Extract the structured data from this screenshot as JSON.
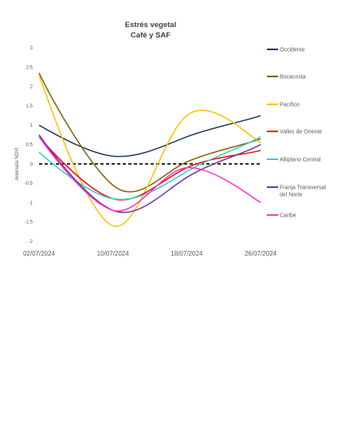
{
  "chart_data": {
    "type": "line",
    "title": "Estrés vegetal",
    "subtitle": "Café y SAF",
    "ylabel": "Anomalía NDVI",
    "xlabel": "",
    "ylim": [
      -2,
      3
    ],
    "yticks": [
      "3",
      "2.5",
      "2",
      "1.5",
      "1",
      "0.5",
      "0",
      "-0.5",
      "-1",
      "-1.5",
      "-2"
    ],
    "x_tick_labels": [
      "02/07/2024",
      "10/07/2024",
      "18/07/2024",
      "26/07/2024"
    ],
    "x": [
      "02/07/2024",
      "10/07/2024",
      "18/07/2024",
      "26/07/2024"
    ],
    "reference_line": {
      "y": 0,
      "style": "dashed",
      "color": "#000000"
    },
    "legend_position": "right",
    "grid": false,
    "series": [
      {
        "name": "Occidente",
        "color": "#1F3864",
        "values": [
          1.0,
          0.2,
          0.7,
          1.25
        ]
      },
      {
        "name": "Bocacosta",
        "color": "#7F6000",
        "values": [
          2.35,
          -0.55,
          0.05,
          0.65
        ]
      },
      {
        "name": "Pacífico",
        "color": "#FFC000",
        "values": [
          2.3,
          -1.6,
          1.25,
          0.55
        ]
      },
      {
        "name": "Valles de Oriente",
        "color": "#FF0000",
        "values": [
          0.7,
          -0.9,
          -0.1,
          0.35
        ]
      },
      {
        "name": "Altiplano Central",
        "color": "#33CCCC",
        "values": [
          0.3,
          -0.9,
          -0.2,
          0.7
        ]
      },
      {
        "name": "Franja Transversal del Norte",
        "color": "#7030A0",
        "values": [
          0.75,
          -1.2,
          -0.35,
          0.5
        ]
      },
      {
        "name": "Caribe",
        "color": "#FF33CC",
        "values": [
          0.7,
          -1.2,
          -0.1,
          -1.0
        ]
      }
    ]
  }
}
